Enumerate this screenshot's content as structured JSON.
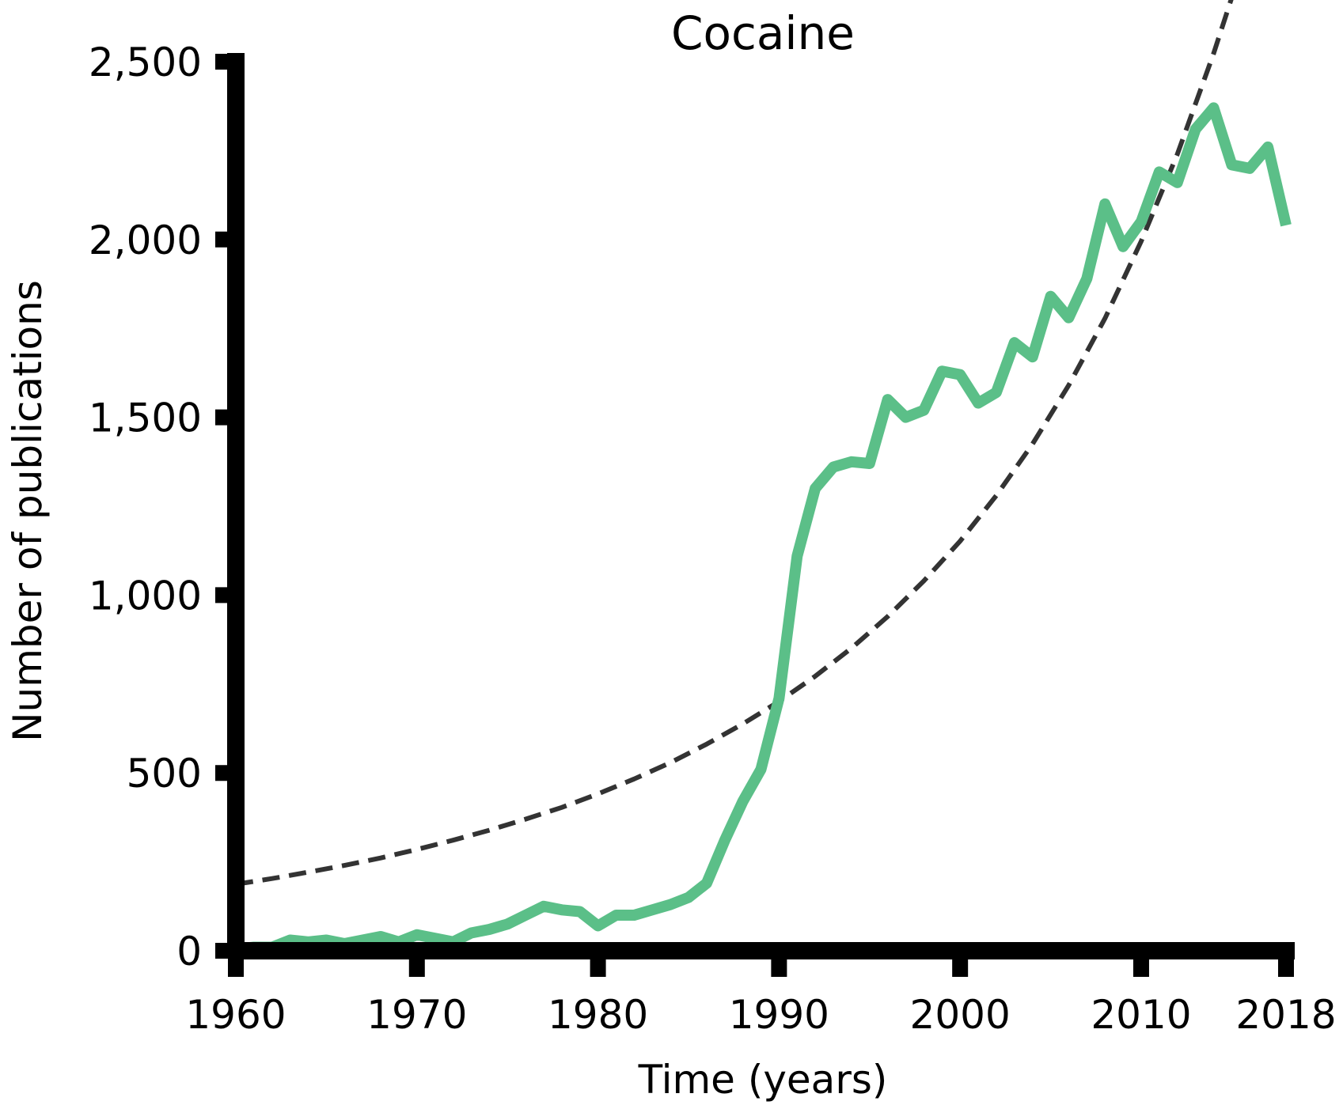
{
  "chart_data": {
    "type": "line",
    "title": "Cocaine",
    "xlabel": "Time (years)",
    "ylabel": "Number of publications",
    "xlim": [
      1960,
      2018
    ],
    "ylim": [
      0,
      2500
    ],
    "x_ticks": [
      1960,
      1970,
      1980,
      1990,
      2000,
      2010,
      2018
    ],
    "x_tick_labels": [
      "1960",
      "1970",
      "1980",
      "1990",
      "2000",
      "2010",
      "2018"
    ],
    "y_ticks": [
      0,
      500,
      1000,
      1500,
      2000,
      2500
    ],
    "y_tick_labels": [
      "0",
      "500",
      "1,000",
      "1,500",
      "2,000",
      "2,500"
    ],
    "grid": false,
    "series": [
      {
        "color": "#5bbf88",
        "style": "solid",
        "x": [
          1960,
          1961,
          1962,
          1963,
          1964,
          1965,
          1966,
          1967,
          1968,
          1969,
          1970,
          1971,
          1972,
          1973,
          1974,
          1975,
          1976,
          1977,
          1978,
          1979,
          1980,
          1981,
          1982,
          1983,
          1984,
          1985,
          1986,
          1987,
          1988,
          1989,
          1990,
          1991,
          1992,
          1993,
          1994,
          1995,
          1996,
          1997,
          1998,
          1999,
          2000,
          2001,
          2002,
          2003,
          2004,
          2005,
          2006,
          2007,
          2008,
          2009,
          2010,
          2011,
          2012,
          2013,
          2014,
          2015,
          2016,
          2017,
          2018
        ],
        "y": [
          5,
          10,
          10,
          30,
          25,
          30,
          20,
          30,
          40,
          25,
          45,
          35,
          25,
          50,
          60,
          75,
          100,
          125,
          115,
          110,
          70,
          100,
          100,
          115,
          130,
          150,
          190,
          310,
          420,
          510,
          710,
          1110,
          1300,
          1360,
          1375,
          1370,
          1550,
          1500,
          1520,
          1630,
          1620,
          1540,
          1570,
          1710,
          1670,
          1840,
          1780,
          1890,
          2100,
          1980,
          2050,
          2190,
          2160,
          2310,
          2370,
          2210,
          2200,
          2260,
          2040
        ]
      },
      {
        "color": "#333333",
        "style": "dashed",
        "x": [
          1960,
          1962,
          1964,
          1966,
          1968,
          1970,
          1972,
          1974,
          1976,
          1978,
          1980,
          1982,
          1984,
          1986,
          1988,
          1990,
          1992,
          1994,
          1996,
          1998,
          2000,
          2002,
          2004,
          2006,
          2008,
          2010,
          2012,
          2014,
          2015
        ],
        "y": [
          187,
          203,
          221,
          240,
          261,
          285,
          311,
          339,
          370,
          403,
          441,
          483,
          529,
          581,
          638,
          701,
          772,
          851,
          940,
          1040,
          1152,
          1280,
          1425,
          1590,
          1778,
          1995,
          2240,
          2523,
          2680
        ]
      }
    ]
  }
}
